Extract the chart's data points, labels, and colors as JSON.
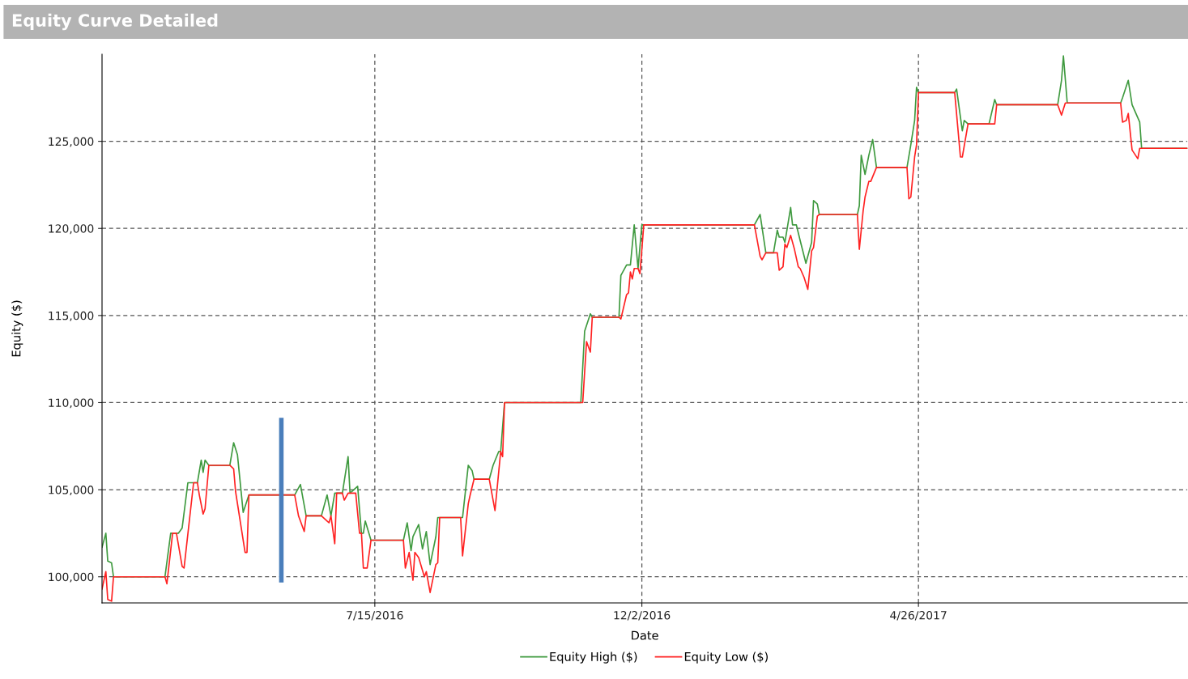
{
  "chart_data": {
    "type": "line",
    "title": "Equity Curve Detailed",
    "xlabel": "Date",
    "ylabel": "Equity ($)",
    "xlim": [
      "2016-02-23",
      "2017-09-14"
    ],
    "xticks": [
      {
        "value": "2016-07-15",
        "label": "7/15/2016"
      },
      {
        "value": "2016-12-02",
        "label": "12/2/2016"
      },
      {
        "value": "2017-04-26",
        "label": "4/26/2017"
      }
    ],
    "ylim": [
      98500,
      130000
    ],
    "yticks": [
      {
        "value": 100000,
        "label": "100,000"
      },
      {
        "value": 105000,
        "label": "105,000"
      },
      {
        "value": 110000,
        "label": "110,000"
      },
      {
        "value": 115000,
        "label": "115,000"
      },
      {
        "value": 120000,
        "label": "120,000"
      },
      {
        "value": 125000,
        "label": "125,000"
      }
    ],
    "grid": true,
    "legend": "bottom",
    "line_style": "solid",
    "marker": "none",
    "series": [
      {
        "name": "Equity High ($)",
        "color": "#3f9a3f",
        "x": [
          "2016-02-23",
          "2016-02-25",
          "2016-02-26",
          "2016-02-28",
          "2016-02-29",
          "2016-03-27",
          "2016-03-30",
          "2016-04-03",
          "2016-04-05",
          "2016-04-08",
          "2016-04-13",
          "2016-04-15",
          "2016-04-16",
          "2016-04-17",
          "2016-04-19",
          "2016-04-30",
          "2016-05-02",
          "2016-05-04",
          "2016-05-07",
          "2016-05-10",
          "2016-06-03",
          "2016-06-06",
          "2016-06-09",
          "2016-06-17",
          "2016-06-20",
          "2016-06-22",
          "2016-06-24",
          "2016-06-28",
          "2016-07-01",
          "2016-07-02",
          "2016-07-06",
          "2016-07-08",
          "2016-07-09",
          "2016-07-10",
          "2016-07-13",
          "2016-07-30",
          "2016-08-01",
          "2016-08-03",
          "2016-08-04",
          "2016-08-07",
          "2016-08-09",
          "2016-08-11",
          "2016-08-13",
          "2016-08-16",
          "2016-08-17",
          "2016-08-30",
          "2016-09-02",
          "2016-09-04",
          "2016-09-05",
          "2016-09-13",
          "2016-09-15",
          "2016-09-18",
          "2016-09-19",
          "2016-09-21",
          "2016-10-31",
          "2016-11-02",
          "2016-11-05",
          "2016-11-06",
          "2016-11-20",
          "2016-11-21",
          "2016-11-24",
          "2016-11-26",
          "2016-11-28",
          "2016-11-30",
          "2016-12-02",
          "2017-01-30",
          "2017-02-02",
          "2017-02-05",
          "2017-02-09",
          "2017-02-11",
          "2017-02-12",
          "2017-02-14",
          "2017-02-15",
          "2017-02-18",
          "2017-02-19",
          "2017-02-21",
          "2017-02-23",
          "2017-02-26",
          "2017-03-01",
          "2017-03-02",
          "2017-03-04",
          "2017-03-05",
          "2017-03-25",
          "2017-03-26",
          "2017-03-27",
          "2017-03-29",
          "2017-03-31",
          "2017-04-02",
          "2017-04-04",
          "2017-04-20",
          "2017-04-22",
          "2017-04-24",
          "2017-04-25",
          "2017-04-26",
          "2017-05-15",
          "2017-05-16",
          "2017-05-19",
          "2017-05-20",
          "2017-05-22",
          "2017-06-02",
          "2017-06-05",
          "2017-06-06",
          "2017-07-08",
          "2017-07-10",
          "2017-07-11",
          "2017-07-13",
          "2017-08-10",
          "2017-08-11",
          "2017-08-14",
          "2017-08-16",
          "2017-08-20",
          "2017-08-21",
          "2017-09-14"
        ],
        "values": [
          101700,
          102500,
          100900,
          100800,
          100000,
          100000,
          102500,
          102500,
          102800,
          105400,
          105400,
          106700,
          106000,
          106700,
          106400,
          106400,
          107700,
          107000,
          103700,
          104700,
          104700,
          105300,
          103500,
          103500,
          104700,
          103500,
          104800,
          104800,
          106900,
          104800,
          105200,
          102500,
          102500,
          103200,
          102100,
          102100,
          103100,
          101500,
          102300,
          103000,
          101600,
          102600,
          100700,
          102300,
          103400,
          103400,
          106400,
          106100,
          105600,
          105600,
          106400,
          107200,
          107200,
          110000,
          110000,
          114100,
          115100,
          114900,
          114900,
          117300,
          117900,
          117900,
          120200,
          117700,
          120200,
          120200,
          120800,
          118600,
          118600,
          119900,
          119500,
          119500,
          119200,
          121200,
          120200,
          120200,
          119300,
          118000,
          119200,
          121600,
          121400,
          120800,
          120800,
          121300,
          124200,
          123100,
          124200,
          125100,
          123500,
          123500,
          124800,
          126200,
          128100,
          127800,
          127800,
          128000,
          125600,
          126200,
          126000,
          126000,
          127400,
          127100,
          127100,
          128500,
          129900,
          127200,
          127200,
          127500,
          128500,
          127100,
          126100,
          124600,
          124600
        ]
      },
      {
        "name": "Equity Low ($)",
        "color": "#ff2222",
        "x": [
          "2016-02-23",
          "2016-02-25",
          "2016-02-26",
          "2016-02-28",
          "2016-02-29",
          "2016-03-27",
          "2016-03-28",
          "2016-03-31",
          "2016-04-02",
          "2016-04-05",
          "2016-04-06",
          "2016-04-11",
          "2016-04-13",
          "2016-04-14",
          "2016-04-16",
          "2016-04-17",
          "2016-04-19",
          "2016-04-30",
          "2016-05-02",
          "2016-05-03",
          "2016-05-08",
          "2016-05-09",
          "2016-05-10",
          "2016-06-03",
          "2016-06-05",
          "2016-06-06",
          "2016-06-08",
          "2016-06-09",
          "2016-06-17",
          "2016-06-20",
          "2016-06-21",
          "2016-06-22",
          "2016-06-24",
          "2016-06-25",
          "2016-06-28",
          "2016-06-29",
          "2016-07-01",
          "2016-07-05",
          "2016-07-07",
          "2016-07-08",
          "2016-07-09",
          "2016-07-11",
          "2016-07-13",
          "2016-07-30",
          "2016-07-31",
          "2016-08-02",
          "2016-08-04",
          "2016-08-05",
          "2016-08-07",
          "2016-08-10",
          "2016-08-11",
          "2016-08-13",
          "2016-08-16",
          "2016-08-17",
          "2016-08-18",
          "2016-08-29",
          "2016-08-30",
          "2016-09-02",
          "2016-09-03",
          "2016-09-05",
          "2016-09-13",
          "2016-09-16",
          "2016-09-19",
          "2016-09-20",
          "2016-09-21",
          "2016-11-01",
          "2016-11-03",
          "2016-11-05",
          "2016-11-06",
          "2016-11-20",
          "2016-11-21",
          "2016-11-24",
          "2016-11-25",
          "2016-11-26",
          "2016-11-27",
          "2016-11-28",
          "2016-11-30",
          "2016-12-01",
          "2016-12-03",
          "2017-01-30",
          "2017-02-02",
          "2017-02-03",
          "2017-02-05",
          "2017-02-11",
          "2017-02-12",
          "2017-02-14",
          "2017-02-15",
          "2017-02-16",
          "2017-02-18",
          "2017-02-20",
          "2017-02-22",
          "2017-02-23",
          "2017-02-25",
          "2017-02-27",
          "2017-03-01",
          "2017-03-02",
          "2017-03-04",
          "2017-03-05",
          "2017-03-25",
          "2017-03-26",
          "2017-03-28",
          "2017-03-29",
          "2017-03-31",
          "2017-04-01",
          "2017-04-04",
          "2017-04-20",
          "2017-04-21",
          "2017-04-22",
          "2017-04-24",
          "2017-04-25",
          "2017-04-26",
          "2017-05-15",
          "2017-05-18",
          "2017-05-19",
          "2017-05-22",
          "2017-06-03",
          "2017-06-05",
          "2017-06-06",
          "2017-07-08",
          "2017-07-10",
          "2017-07-12",
          "2017-08-10",
          "2017-08-11",
          "2017-08-13",
          "2017-08-14",
          "2017-08-16",
          "2017-08-19",
          "2017-08-20",
          "2017-09-14"
        ],
        "values": [
          99300,
          100300,
          98700,
          98600,
          100000,
          100000,
          99600,
          102500,
          102500,
          100600,
          100500,
          105400,
          105400,
          104700,
          103600,
          103900,
          106400,
          106400,
          106200,
          104900,
          101400,
          101400,
          104700,
          104700,
          103500,
          103200,
          102600,
          103500,
          103500,
          103200,
          103100,
          103500,
          101900,
          104800,
          104800,
          104400,
          104800,
          104800,
          102500,
          102500,
          100500,
          100500,
          102100,
          102100,
          100500,
          101400,
          99800,
          101400,
          101100,
          100000,
          100300,
          99100,
          100700,
          100800,
          103400,
          103400,
          101200,
          104200,
          104700,
          105600,
          105600,
          103800,
          107200,
          106900,
          110000,
          110000,
          113500,
          112900,
          114900,
          114900,
          114800,
          116200,
          116300,
          117500,
          117100,
          117700,
          117700,
          117400,
          120200,
          120200,
          118400,
          118200,
          118600,
          118600,
          117600,
          117800,
          119100,
          118900,
          119600,
          118800,
          117800,
          117700,
          117200,
          116500,
          118700,
          118900,
          120700,
          120800,
          120800,
          118800,
          121000,
          121800,
          122700,
          122700,
          123500,
          123500,
          121700,
          121800,
          124100,
          124800,
          127800,
          127800,
          124100,
          124100,
          126000,
          126000,
          126000,
          127100,
          127100,
          126500,
          127200,
          127200,
          126100,
          126200,
          126600,
          124500,
          124000,
          124600,
          124600
        ]
      },
      {
        "color": "#4a7ebb",
        "x": [
          "2016-05-27",
          "2016-05-27"
        ],
        "values": [
          99800,
          109000
        ]
      }
    ]
  }
}
